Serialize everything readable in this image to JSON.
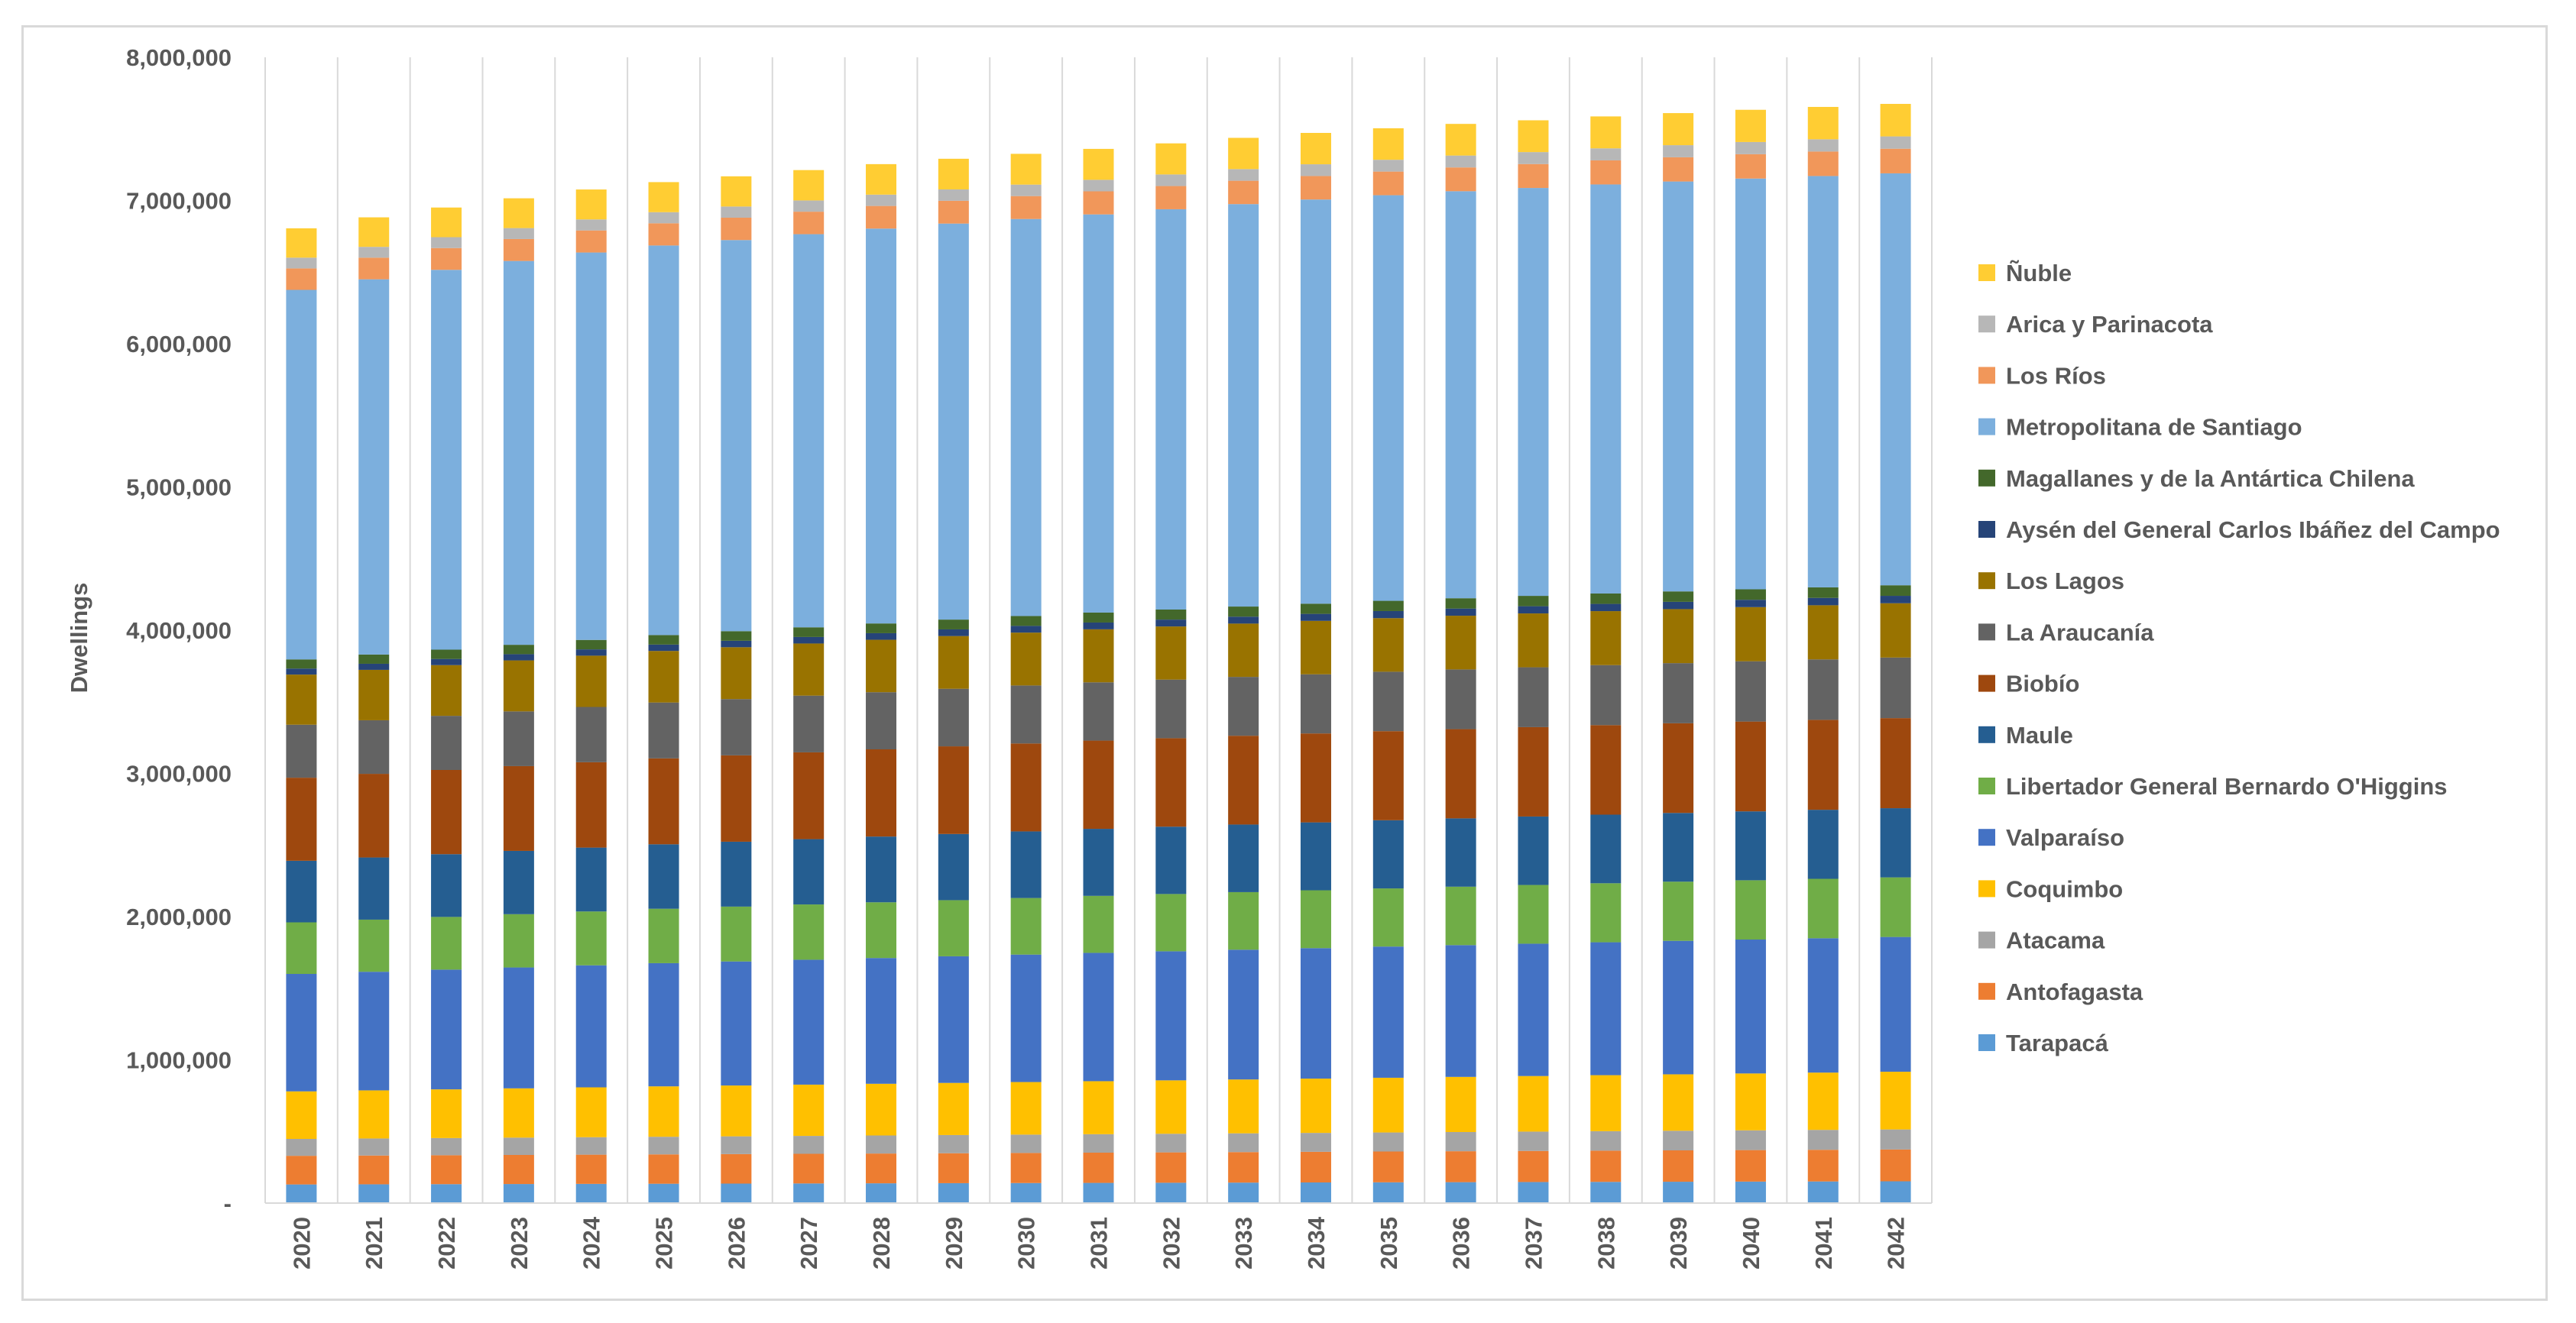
{
  "chart_data": {
    "type": "bar",
    "stacked": true,
    "title": "",
    "xlabel": "",
    "ylabel": "Dwellings",
    "ylim": [
      0,
      8000000
    ],
    "yticks": [
      0,
      1000000,
      2000000,
      3000000,
      4000000,
      5000000,
      6000000,
      7000000,
      8000000
    ],
    "ytick_labels": [
      "-",
      "1,000,000",
      "2,000,000",
      "3,000,000",
      "4,000,000",
      "5,000,000",
      "6,000,000",
      "7,000,000",
      "8,000,000"
    ],
    "grid": "vertical",
    "legend_position": "right",
    "categories": [
      "2020",
      "2021",
      "2022",
      "2023",
      "2024",
      "2025",
      "2026",
      "2027",
      "2028",
      "2029",
      "2030",
      "2031",
      "2032",
      "2033",
      "2034",
      "2035",
      "2036",
      "2037",
      "2038",
      "2039",
      "2040",
      "2041",
      "2042"
    ],
    "series": [
      {
        "name": "Tarapacá",
        "color": "#5b9bd5",
        "values": [
          130000,
          131000,
          132000,
          133000,
          134000,
          135000,
          136000,
          137000,
          138000,
          139000,
          140000,
          141000,
          142000,
          143000,
          144000,
          145000,
          146000,
          147000,
          148000,
          149000,
          150000,
          151000,
          152000
        ]
      },
      {
        "name": "Antofagasta",
        "color": "#ed7d31",
        "values": [
          200000,
          201000,
          202000,
          203000,
          204000,
          205000,
          206000,
          207000,
          208000,
          209000,
          210000,
          211000,
          212000,
          213000,
          214000,
          215000,
          216000,
          217000,
          218000,
          219000,
          220000,
          221000,
          222000
        ]
      },
      {
        "name": "Atacama",
        "color": "#a5a5a5",
        "values": [
          118000,
          119000,
          120000,
          121000,
          122000,
          123000,
          124000,
          125000,
          126000,
          127000,
          128000,
          129000,
          130000,
          131000,
          132000,
          133000,
          134000,
          135000,
          136000,
          137000,
          138000,
          139000,
          140000
        ]
      },
      {
        "name": "Coquimbo",
        "color": "#ffc000",
        "values": [
          332000,
          336000,
          340000,
          344000,
          348000,
          352000,
          355000,
          358000,
          361000,
          364000,
          367000,
          370000,
          373000,
          376000,
          379000,
          382000,
          385000,
          388000,
          391000,
          394000,
          397000,
          400000,
          403000
        ]
      },
      {
        "name": "Valparaíso",
        "color": "#4472c4",
        "values": [
          820000,
          828000,
          836000,
          844000,
          852000,
          860000,
          866000,
          872000,
          878000,
          884000,
          890000,
          896000,
          901000,
          906000,
          911000,
          916000,
          920000,
          924000,
          928000,
          932000,
          935000,
          938000,
          941000
        ]
      },
      {
        "name": "Libertador General Bernardo O'Higgins",
        "color": "#70ad47",
        "values": [
          360000,
          364000,
          368000,
          372000,
          376000,
          380000,
          383000,
          386000,
          389000,
          392000,
          395000,
          398000,
          400000,
          402000,
          404000,
          406000,
          408000,
          410000,
          412000,
          413000,
          414000,
          415000,
          416000
        ]
      },
      {
        "name": "Maule",
        "color": "#255e91",
        "values": [
          430000,
          434000,
          438000,
          442000,
          446000,
          450000,
          453000,
          456000,
          459000,
          462000,
          465000,
          468000,
          470000,
          472000,
          474000,
          476000,
          477000,
          478000,
          479000,
          480000,
          481000,
          482000,
          483000
        ]
      },
      {
        "name": "Biobío",
        "color": "#9e480e",
        "values": [
          580000,
          584000,
          588000,
          592000,
          596000,
          600000,
          603000,
          606000,
          609000,
          612000,
          614000,
          616000,
          618000,
          620000,
          621000,
          622000,
          623000,
          624000,
          625000,
          626000,
          627000,
          628000,
          629000
        ]
      },
      {
        "name": "La Araucanía",
        "color": "#636363",
        "values": [
          370000,
          374000,
          378000,
          382000,
          386000,
          390000,
          393000,
          396000,
          399000,
          402000,
          405000,
          407000,
          409000,
          411000,
          413000,
          415000,
          417000,
          418000,
          419000,
          420000,
          421000,
          422000,
          423000
        ]
      },
      {
        "name": "Los Lagos",
        "color": "#997300",
        "values": [
          350000,
          352000,
          354000,
          356000,
          358000,
          360000,
          362000,
          364000,
          366000,
          368000,
          369000,
          370000,
          371000,
          372000,
          373000,
          374000,
          375000,
          376000,
          377000,
          377000,
          378000,
          378000,
          379000
        ]
      },
      {
        "name": "Aysén del General Carlos Ibáñez del Campo",
        "color": "#264478",
        "values": [
          42000,
          42500,
          43000,
          43500,
          44000,
          44500,
          45000,
          45500,
          46000,
          46500,
          47000,
          47500,
          48000,
          48500,
          49000,
          49500,
          50000,
          50300,
          50600,
          50900,
          51200,
          51500,
          51800
        ]
      },
      {
        "name": "Magallanes y de la Antártica Chilena",
        "color": "#43682b",
        "values": [
          64000,
          64500,
          65000,
          65500,
          66000,
          66500,
          67000,
          67500,
          68000,
          68500,
          69000,
          69500,
          70000,
          70500,
          71000,
          71500,
          72000,
          72300,
          72600,
          72900,
          73200,
          73500,
          73800
        ]
      },
      {
        "name": "Metropolitana de Santiago",
        "color": "#7cafdd",
        "values": [
          2580000,
          2620000,
          2652000,
          2680000,
          2705000,
          2720000,
          2731000,
          2745000,
          2757000,
          2765000,
          2772000,
          2780000,
          2795000,
          2810000,
          2822000,
          2832000,
          2842000,
          2848000,
          2856000,
          2862000,
          2868000,
          2872000,
          2876000
        ]
      },
      {
        "name": "Los Ríos",
        "color": "#f1975a",
        "values": [
          150000,
          151000,
          152000,
          153000,
          154000,
          155000,
          156000,
          157000,
          158000,
          159000,
          160000,
          161000,
          162000,
          163000,
          164000,
          165000,
          166000,
          167000,
          168000,
          169000,
          170000,
          171000,
          172000
        ]
      },
      {
        "name": "Arica y Parinacota",
        "color": "#b7b7b7",
        "values": [
          75000,
          75500,
          76000,
          76500,
          77000,
          77500,
          78000,
          78500,
          79000,
          79500,
          80000,
          80500,
          81000,
          81500,
          82000,
          82500,
          83000,
          83500,
          84000,
          84500,
          85000,
          85500,
          86000
        ]
      },
      {
        "name": "Ñuble",
        "color": "#ffcd33",
        "values": [
          205000,
          206000,
          207000,
          208000,
          209000,
          210000,
          211000,
          212000,
          213000,
          214000,
          215000,
          216000,
          217000,
          218000,
          219000,
          220000,
          221000,
          222000,
          223000,
          224000,
          225000,
          226000,
          227000
        ]
      }
    ]
  }
}
